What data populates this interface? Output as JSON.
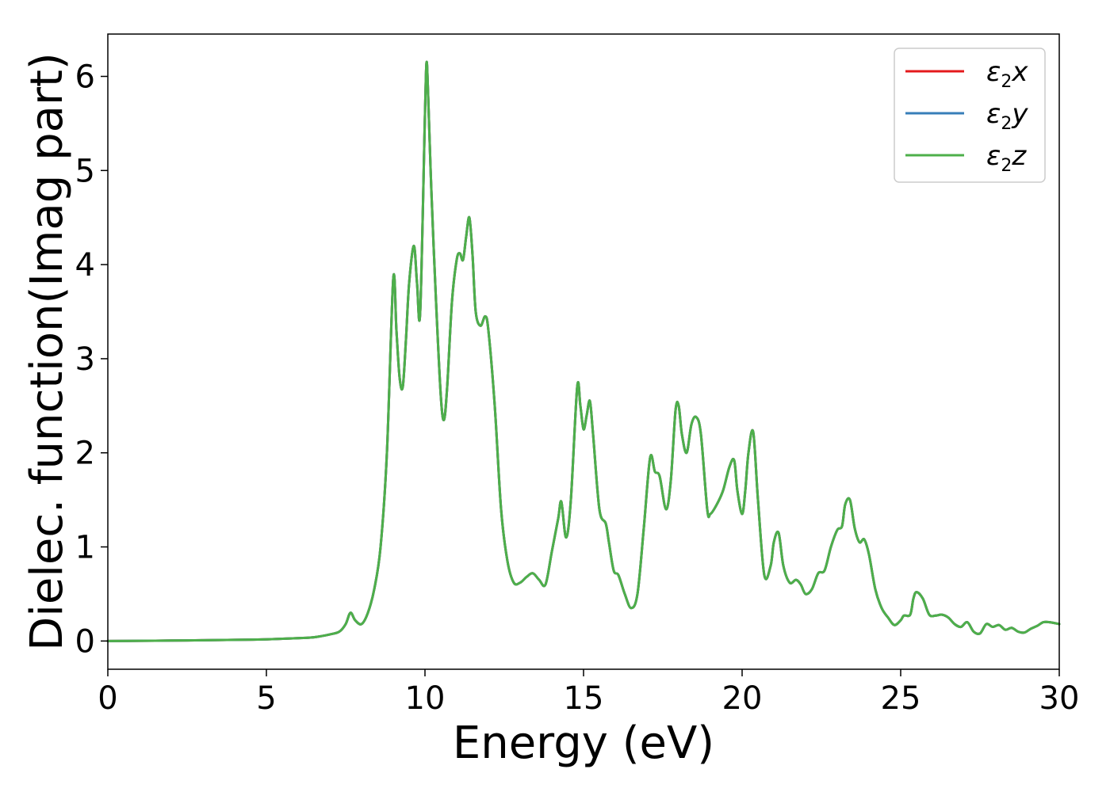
{
  "chart_data": {
    "type": "line",
    "title": "",
    "xlabel": "Energy (eV)",
    "ylabel": "Dielec. function(Imag part)",
    "xlim": [
      0,
      30
    ],
    "ylim": [
      -0.3,
      6.45
    ],
    "xticks": [
      0,
      5,
      10,
      15,
      20,
      25,
      30
    ],
    "yticks": [
      0,
      1,
      2,
      3,
      4,
      5,
      6
    ],
    "xtick_labels": [
      "0",
      "5",
      "10",
      "15",
      "20",
      "25",
      "30"
    ],
    "ytick_labels": [
      "0",
      "1",
      "2",
      "3",
      "4",
      "5",
      "6"
    ],
    "grid": false,
    "legend_position": "top-right",
    "x": [
      0,
      1,
      2,
      3,
      4,
      5,
      6,
      6.5,
      7,
      7.3,
      7.5,
      7.65,
      7.8,
      8.0,
      8.2,
      8.4,
      8.6,
      8.8,
      9.0,
      9.1,
      9.2,
      9.3,
      9.4,
      9.5,
      9.65,
      9.75,
      9.85,
      10.0,
      10.05,
      10.1,
      10.2,
      10.35,
      10.5,
      10.6,
      10.7,
      10.85,
      11.0,
      11.1,
      11.2,
      11.3,
      11.4,
      11.5,
      11.6,
      11.75,
      11.9,
      12.0,
      12.2,
      12.4,
      12.6,
      12.8,
      13.0,
      13.2,
      13.4,
      13.6,
      13.8,
      14.0,
      14.2,
      14.3,
      14.45,
      14.6,
      14.8,
      14.9,
      15.0,
      15.1,
      15.2,
      15.3,
      15.5,
      15.7,
      15.8,
      15.95,
      16.1,
      16.3,
      16.5,
      16.7,
      16.9,
      17.1,
      17.25,
      17.4,
      17.6,
      17.75,
      17.9,
      18.0,
      18.1,
      18.25,
      18.4,
      18.55,
      18.7,
      18.9,
      19.0,
      19.2,
      19.4,
      19.6,
      19.75,
      19.85,
      20.0,
      20.1,
      20.2,
      20.35,
      20.5,
      20.7,
      20.9,
      21.0,
      21.15,
      21.3,
      21.5,
      21.7,
      21.85,
      22.0,
      22.2,
      22.4,
      22.6,
      22.8,
      23.0,
      23.15,
      23.25,
      23.4,
      23.55,
      23.7,
      23.85,
      24.0,
      24.2,
      24.4,
      24.6,
      24.8,
      25.0,
      25.1,
      25.3,
      25.4,
      25.5,
      25.7,
      25.9,
      26.1,
      26.3,
      26.5,
      26.7,
      26.9,
      27.1,
      27.3,
      27.5,
      27.7,
      27.9,
      28.1,
      28.3,
      28.5,
      28.7,
      28.9,
      29.1,
      29.3,
      29.5,
      29.7,
      30.0
    ],
    "series": [
      {
        "name": "ε2x",
        "color": "#e41a1c",
        "y": [
          0,
          0.002,
          0.005,
          0.008,
          0.012,
          0.018,
          0.03,
          0.04,
          0.07,
          0.1,
          0.18,
          0.3,
          0.22,
          0.18,
          0.3,
          0.55,
          1.0,
          2.0,
          3.85,
          3.3,
          2.8,
          2.7,
          3.2,
          3.8,
          4.2,
          3.8,
          3.5,
          5.6,
          6.15,
          5.8,
          4.8,
          3.6,
          2.6,
          2.35,
          2.7,
          3.6,
          4.05,
          4.12,
          4.05,
          4.3,
          4.5,
          4.1,
          3.5,
          3.35,
          3.45,
          3.3,
          2.5,
          1.4,
          0.85,
          0.62,
          0.62,
          0.68,
          0.72,
          0.65,
          0.6,
          0.95,
          1.3,
          1.48,
          1.1,
          1.5,
          2.7,
          2.5,
          2.25,
          2.4,
          2.55,
          2.2,
          1.4,
          1.25,
          1.05,
          0.75,
          0.7,
          0.5,
          0.35,
          0.5,
          1.2,
          1.95,
          1.8,
          1.75,
          1.4,
          1.7,
          2.45,
          2.5,
          2.2,
          2.0,
          2.3,
          2.38,
          2.2,
          1.4,
          1.35,
          1.45,
          1.6,
          1.85,
          1.92,
          1.6,
          1.35,
          1.6,
          2.0,
          2.22,
          1.5,
          0.7,
          0.8,
          1.05,
          1.15,
          0.8,
          0.62,
          0.65,
          0.6,
          0.5,
          0.55,
          0.72,
          0.75,
          1.0,
          1.18,
          1.22,
          1.45,
          1.5,
          1.2,
          1.05,
          1.08,
          0.92,
          0.55,
          0.35,
          0.25,
          0.17,
          0.22,
          0.27,
          0.28,
          0.45,
          0.52,
          0.45,
          0.28,
          0.27,
          0.28,
          0.25,
          0.18,
          0.15,
          0.2,
          0.1,
          0.08,
          0.18,
          0.15,
          0.17,
          0.12,
          0.14,
          0.1,
          0.09,
          0.13,
          0.16,
          0.2,
          0.2,
          0.18
        ]
      },
      {
        "name": "ε2y",
        "color": "#377eb8",
        "y": [
          0,
          0.002,
          0.005,
          0.008,
          0.012,
          0.018,
          0.03,
          0.04,
          0.07,
          0.1,
          0.18,
          0.3,
          0.22,
          0.18,
          0.3,
          0.55,
          1.0,
          2.0,
          3.85,
          3.3,
          2.8,
          2.7,
          3.2,
          3.8,
          4.2,
          3.8,
          3.5,
          5.6,
          6.15,
          5.8,
          4.8,
          3.6,
          2.6,
          2.35,
          2.7,
          3.6,
          4.05,
          4.12,
          4.05,
          4.3,
          4.5,
          4.1,
          3.5,
          3.35,
          3.45,
          3.3,
          2.5,
          1.4,
          0.85,
          0.62,
          0.62,
          0.68,
          0.72,
          0.65,
          0.6,
          0.95,
          1.3,
          1.48,
          1.1,
          1.5,
          2.7,
          2.5,
          2.25,
          2.4,
          2.55,
          2.2,
          1.4,
          1.25,
          1.05,
          0.75,
          0.7,
          0.5,
          0.35,
          0.5,
          1.2,
          1.95,
          1.8,
          1.75,
          1.4,
          1.7,
          2.45,
          2.5,
          2.2,
          2.0,
          2.3,
          2.38,
          2.2,
          1.4,
          1.35,
          1.45,
          1.6,
          1.85,
          1.92,
          1.6,
          1.35,
          1.6,
          2.0,
          2.22,
          1.5,
          0.7,
          0.8,
          1.05,
          1.15,
          0.8,
          0.62,
          0.65,
          0.6,
          0.5,
          0.55,
          0.72,
          0.75,
          1.0,
          1.18,
          1.22,
          1.45,
          1.5,
          1.2,
          1.05,
          1.08,
          0.92,
          0.55,
          0.35,
          0.25,
          0.17,
          0.22,
          0.27,
          0.28,
          0.45,
          0.52,
          0.45,
          0.28,
          0.27,
          0.28,
          0.25,
          0.18,
          0.15,
          0.2,
          0.1,
          0.08,
          0.18,
          0.15,
          0.17,
          0.12,
          0.14,
          0.1,
          0.09,
          0.13,
          0.16,
          0.2,
          0.2,
          0.18
        ]
      },
      {
        "name": "ε2z",
        "color": "#4daf4a",
        "y": [
          0,
          0.002,
          0.005,
          0.008,
          0.012,
          0.018,
          0.03,
          0.04,
          0.07,
          0.1,
          0.18,
          0.3,
          0.22,
          0.18,
          0.3,
          0.55,
          1.0,
          2.0,
          3.85,
          3.3,
          2.8,
          2.7,
          3.2,
          3.8,
          4.2,
          3.8,
          3.5,
          5.6,
          6.15,
          5.8,
          4.8,
          3.6,
          2.6,
          2.35,
          2.7,
          3.6,
          4.05,
          4.12,
          4.05,
          4.3,
          4.5,
          4.1,
          3.5,
          3.35,
          3.45,
          3.3,
          2.5,
          1.4,
          0.85,
          0.62,
          0.62,
          0.68,
          0.72,
          0.65,
          0.6,
          0.95,
          1.3,
          1.48,
          1.1,
          1.5,
          2.7,
          2.5,
          2.25,
          2.4,
          2.55,
          2.2,
          1.4,
          1.25,
          1.05,
          0.75,
          0.7,
          0.5,
          0.35,
          0.5,
          1.2,
          1.95,
          1.8,
          1.75,
          1.4,
          1.7,
          2.45,
          2.5,
          2.2,
          2.0,
          2.3,
          2.38,
          2.2,
          1.4,
          1.35,
          1.45,
          1.6,
          1.85,
          1.92,
          1.6,
          1.35,
          1.6,
          2.0,
          2.22,
          1.5,
          0.7,
          0.8,
          1.05,
          1.15,
          0.8,
          0.62,
          0.65,
          0.6,
          0.5,
          0.55,
          0.72,
          0.75,
          1.0,
          1.18,
          1.22,
          1.45,
          1.5,
          1.2,
          1.05,
          1.08,
          0.92,
          0.55,
          0.35,
          0.25,
          0.17,
          0.22,
          0.27,
          0.28,
          0.45,
          0.52,
          0.45,
          0.28,
          0.27,
          0.28,
          0.25,
          0.18,
          0.15,
          0.2,
          0.1,
          0.08,
          0.18,
          0.15,
          0.17,
          0.12,
          0.14,
          0.1,
          0.09,
          0.13,
          0.16,
          0.2,
          0.2,
          0.18
        ]
      }
    ],
    "legend": [
      {
        "base": "ε",
        "sub": "2",
        "tail": "x"
      },
      {
        "base": "ε",
        "sub": "2",
        "tail": "y"
      },
      {
        "base": "ε",
        "sub": "2",
        "tail": "z"
      }
    ]
  }
}
